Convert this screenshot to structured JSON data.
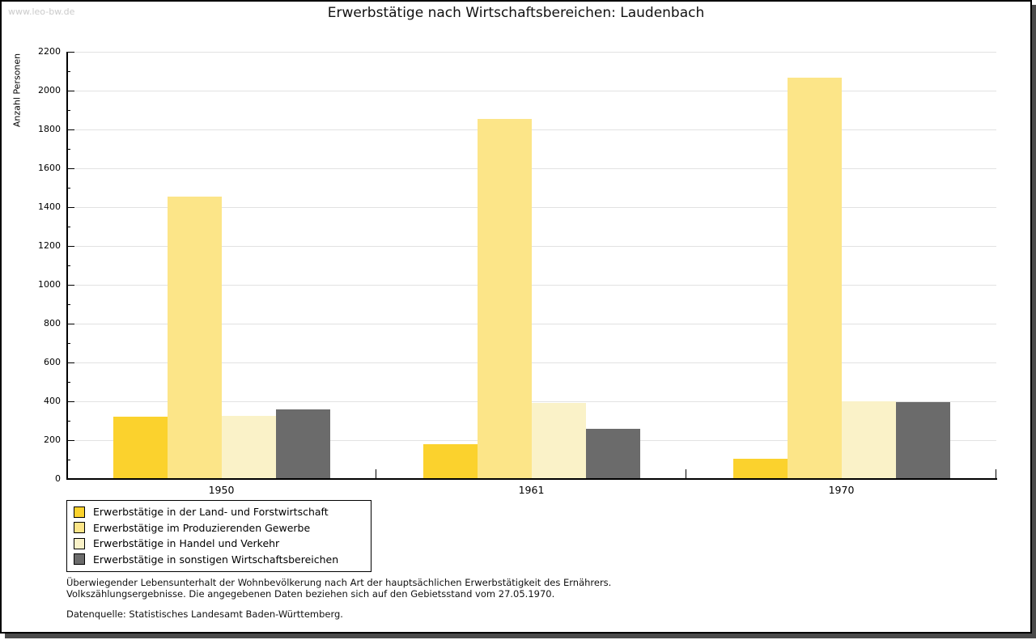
{
  "watermark": "www.leo-bw.de",
  "title": "Erwerbstätige nach Wirtschaftsbereichen: Laudenbach",
  "chart_data": {
    "type": "bar",
    "title": "Erwerbstätige nach Wirtschaftsbereichen: Laudenbach",
    "xlabel": "",
    "ylabel": "Anzahl Personen",
    "categories": [
      "1950",
      "1961",
      "1970"
    ],
    "series": [
      {
        "name": "Erwerbstätige in der Land- und Forstwirtschaft",
        "color": "#FBD22D",
        "values": [
          320,
          180,
          105
        ]
      },
      {
        "name": "Erwerbstätige im Produzierenden Gewerbe",
        "color": "#FCE588",
        "values": [
          1455,
          1855,
          2065
        ]
      },
      {
        "name": "Erwerbstätige in Handel und Verkehr",
        "color": "#FAF2C8",
        "values": [
          325,
          390,
          400
        ]
      },
      {
        "name": "Erwerbstätige in sonstigen Wirtschaftsbereichen",
        "color": "#6B6B6B",
        "values": [
          360,
          260,
          395
        ]
      }
    ],
    "ylim": [
      0,
      2200
    ],
    "ytick_step": 200,
    "yminor_step": 100,
    "yticks": [
      0,
      200,
      400,
      600,
      800,
      1000,
      1200,
      1400,
      1600,
      1800,
      2000,
      2200
    ],
    "grid": true,
    "legend_position": "bottom-left",
    "grid_color": "#e2e2e2"
  },
  "footnotes": {
    "line1": "Überwiegender Lebensunterhalt der Wohnbevölkerung nach Art der hauptsächlichen Erwerbstätigkeit des Ernährers.",
    "line2": "Volkszählungsergebnisse. Die angegebenen Daten beziehen sich auf den Gebietsstand vom 27.05.1970.",
    "source": "Datenquelle: Statistisches Landesamt Baden-Württemberg."
  }
}
